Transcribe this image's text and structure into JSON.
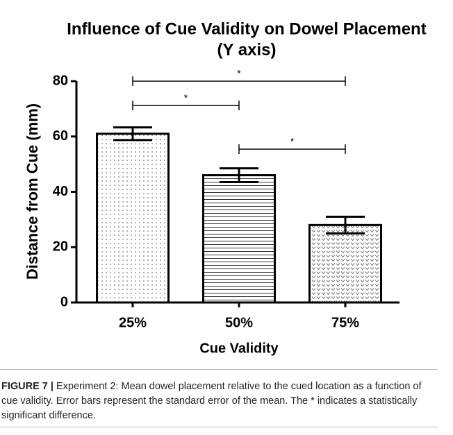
{
  "chart_data": {
    "type": "bar",
    "title": "Influence of Cue Validity on Dowel Placement",
    "subtitle": "(Y axis)",
    "y_label": "Distance from Cue (mm)",
    "x_label": "Cue Validity",
    "categories": [
      "25%",
      "50%",
      "75%"
    ],
    "values": [
      61,
      46,
      28
    ],
    "errors": [
      2.3,
      2.5,
      3
    ],
    "color": "#000000",
    "patterns": [
      "dots",
      "hlines",
      "vees"
    ],
    "ylim": [
      0,
      80
    ],
    "yticks": [
      0,
      20,
      40,
      60,
      80
    ],
    "significance": [
      {
        "from": 0,
        "to": 2,
        "label": "*"
      },
      {
        "from": 0,
        "to": 1,
        "label": "*"
      },
      {
        "from": 1,
        "to": 2,
        "label": "*"
      }
    ]
  },
  "caption": {
    "label": "FIGURE 7 |",
    "text": "Experiment 2: Mean dowel placement relative to the cued location as a function of cue validity. Error bars represent the standard error of the mean. The * indicates a statistically significant difference."
  }
}
